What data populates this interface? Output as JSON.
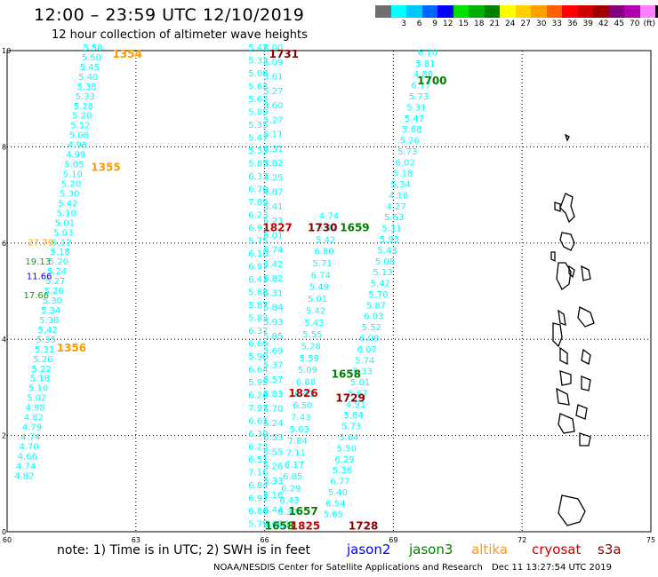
{
  "title": "12:00 – 23:59 UTC 12/10/2019",
  "subtitle": "12 hour collection of altimeter wave heights",
  "legend": {
    "colors": [
      "#707070",
      "#00ffff",
      "#00c8ff",
      "#0064ff",
      "#0000ff",
      "#00e000",
      "#00b000",
      "#008000",
      "#ffff00",
      "#ffd000",
      "#ffa000",
      "#ff6000",
      "#ff0000",
      "#d00000",
      "#a00000",
      "#800080",
      "#b000b0",
      "#ff80ff",
      "#000000"
    ],
    "labels": [
      "",
      "3",
      "6",
      "9",
      "12",
      "15",
      "18",
      "21",
      "24",
      "27",
      "30",
      "33",
      "36",
      "39",
      "42",
      "45",
      "70",
      "(ft)",
      ""
    ]
  },
  "note": "note: 1) Time is in UTC; 2) SWH is in feet",
  "satellites": [
    {
      "name": "jason2",
      "color": "#0000ff"
    },
    {
      "name": "jason3",
      "color": "#008000"
    },
    {
      "name": "altika",
      "color": "#ff9900"
    },
    {
      "name": "cryosat",
      "color": "#cc0000"
    },
    {
      "name": "s3a",
      "color": "#8b0000"
    }
  ],
  "credit": "NOAA/NESDIS Center for Satellite Applications and Research",
  "timestamp": "Dec 11 13:27:54 UTC 2019",
  "chart_data": {
    "type": "scatter",
    "title": "12:00 – 23:59 UTC 12/10/2019",
    "xlabel": "",
    "ylabel": "",
    "xlim": [
      60,
      75
    ],
    "ylim": [
      0,
      10
    ],
    "x_ticks": [
      60,
      63,
      66,
      69,
      72,
      75
    ],
    "y_ticks": [
      0,
      2,
      4,
      6,
      8,
      10
    ],
    "grid": true,
    "track_color": "#00ffff",
    "tracks": [
      {
        "name": "track-a",
        "x0": 60.4,
        "y0": 1.1,
        "x1": 62.0,
        "y1": 10.0,
        "values": [
          "4.82",
          "4.74",
          "4.66",
          "4.70",
          "4.74",
          "4.79",
          "4.82",
          "4.98",
          "5.02",
          "5.10",
          "5.18",
          "5.22",
          "5.26",
          "5.31",
          "5.35",
          "5.42",
          "5.38",
          "5.34",
          "5.30",
          "5.26",
          "5.27",
          "5.24",
          "5.20",
          "5.18",
          "5.12",
          "5.03",
          "5.01",
          "5.10",
          "5.42",
          "5.30",
          "5.20",
          "5.10",
          "5.05",
          "4.99",
          "4.96",
          "5.08",
          "5.12",
          "5.20",
          "5.28",
          "5.33",
          "5.38",
          "5.40",
          "5.45",
          "5.50",
          "5.58"
        ]
      },
      {
        "name": "track-b",
        "x0": 65.85,
        "y0": 0.1,
        "x1": 65.85,
        "y1": 10.0,
        "values": [
          "5.79",
          "6.86",
          "6.91",
          "6.84",
          "7.16",
          "6.51",
          "6.23",
          "6.30",
          "6.61",
          "7.97",
          "6.26",
          "5.95",
          "6.64",
          "5.90",
          "6.69",
          "6.37",
          "5.83",
          "5.87",
          "5.88",
          "6.41",
          "6.97",
          "6.10",
          "5.75",
          "6.97",
          "6.23",
          "7.89",
          "6.70",
          "6.37",
          "5.85",
          "5.33",
          "5.47",
          "5.35",
          "5.89",
          "5.63",
          "5.63",
          "5.08",
          "5.33",
          "5.47"
        ]
      },
      {
        "name": "track-c",
        "x0": 66.2,
        "y0": 0.1,
        "x1": 66.2,
        "y1": 10.0,
        "values": [
          "6.00",
          "6.44",
          "5.16",
          "5.33",
          "5.26",
          "5.55",
          "5.53",
          "5.24",
          "5.70",
          "5.83",
          "5.57",
          "5.37",
          "5.69",
          "5.85",
          "5.93",
          "5.84",
          "6.31",
          "5.82",
          "6.42",
          "6.74",
          "6.01",
          "6.23",
          "5.41",
          "4.87",
          "4.25",
          "5.82",
          "6.31",
          "5.11",
          "5.27",
          "4.60",
          "5.27",
          "5.61",
          "6.09",
          "6.00"
        ]
      },
      {
        "name": "track-d",
        "x0": 66.5,
        "y0": 0.1,
        "x1": 67.5,
        "y1": 6.5,
        "values": [
          "6.13",
          "6.32",
          "6.43",
          "6.29",
          "6.85",
          "6.17",
          "7.11",
          "7.84",
          "5.03",
          "7.43",
          "6.50",
          "6.41",
          "6.88",
          "5.09",
          "5.59",
          "5.28",
          "5.55",
          "5.43",
          "5.42",
          "5.01",
          "5.49",
          "6.74",
          "5.71",
          "6.80",
          "5.42",
          "5.42",
          "4.74"
        ]
      },
      {
        "name": "track-e",
        "x0": 67.6,
        "y0": 0.3,
        "x1": 69.8,
        "y1": 9.9,
        "values": [
          "5.65",
          "6.54",
          "5.40",
          "6.77",
          "5.36",
          "6.29",
          "5.50",
          "5.64",
          "5.73",
          "5.64",
          "4.91",
          "5.67",
          "5.01",
          "5.33",
          "5.74",
          "6.07",
          "6.09",
          "5.52",
          "6.03",
          "5.87",
          "5.70",
          "5.42",
          "5.13",
          "5.08",
          "5.43",
          "5.93",
          "5.11",
          "5.63",
          "4.27",
          "4.18",
          "5.34",
          "5.18",
          "6.02",
          "5.73",
          "5.26",
          "5.68",
          "5.47",
          "5.31",
          "5.73",
          "6.17",
          "4.80",
          "5.81",
          "6.10"
        ]
      }
    ],
    "color_coded": [
      {
        "value": "27.79",
        "x": 60.78,
        "y": 5.95,
        "color": "#ffa000"
      },
      {
        "value": "19.13",
        "x": 60.72,
        "y": 5.55,
        "color": "#00b000"
      },
      {
        "value": "11.66",
        "x": 60.75,
        "y": 5.25,
        "color": "#0000ff"
      },
      {
        "value": "17.66",
        "x": 60.68,
        "y": 4.85,
        "color": "#00b000"
      }
    ],
    "time_labels": [
      {
        "text": "1354",
        "x": 62.8,
        "y": 9.85,
        "color": "#ff9900"
      },
      {
        "text": "1355",
        "x": 62.3,
        "y": 7.5,
        "color": "#ff9900"
      },
      {
        "text": "1356",
        "x": 61.5,
        "y": 3.75,
        "color": "#ff9900"
      },
      {
        "text": "1731",
        "x": 66.45,
        "y": 9.85,
        "color": "#8b0000"
      },
      {
        "text": "1827",
        "x": 66.3,
        "y": 6.25,
        "color": "#cc0000"
      },
      {
        "text": "1730",
        "x": 67.35,
        "y": 6.25,
        "color": "#8b0000"
      },
      {
        "text": "1659",
        "x": 68.1,
        "y": 6.25,
        "color": "#008000"
      },
      {
        "text": "1700",
        "x": 69.9,
        "y": 9.3,
        "color": "#008000"
      },
      {
        "text": "1658",
        "x": 67.9,
        "y": 3.2,
        "color": "#008000"
      },
      {
        "text": "1826",
        "x": 66.9,
        "y": 2.8,
        "color": "#cc0000"
      },
      {
        "text": "1729",
        "x": 68.0,
        "y": 2.7,
        "color": "#8b0000"
      },
      {
        "text": "1657",
        "x": 66.9,
        "y": 0.35,
        "color": "#008000"
      },
      {
        "text": "1658",
        "x": 66.35,
        "y": 0.05,
        "color": "#008000"
      },
      {
        "text": "1825",
        "x": 66.95,
        "y": 0.05,
        "color": "#cc0000"
      },
      {
        "text": "1728",
        "x": 68.3,
        "y": 0.05,
        "color": "#8b0000"
      }
    ]
  }
}
